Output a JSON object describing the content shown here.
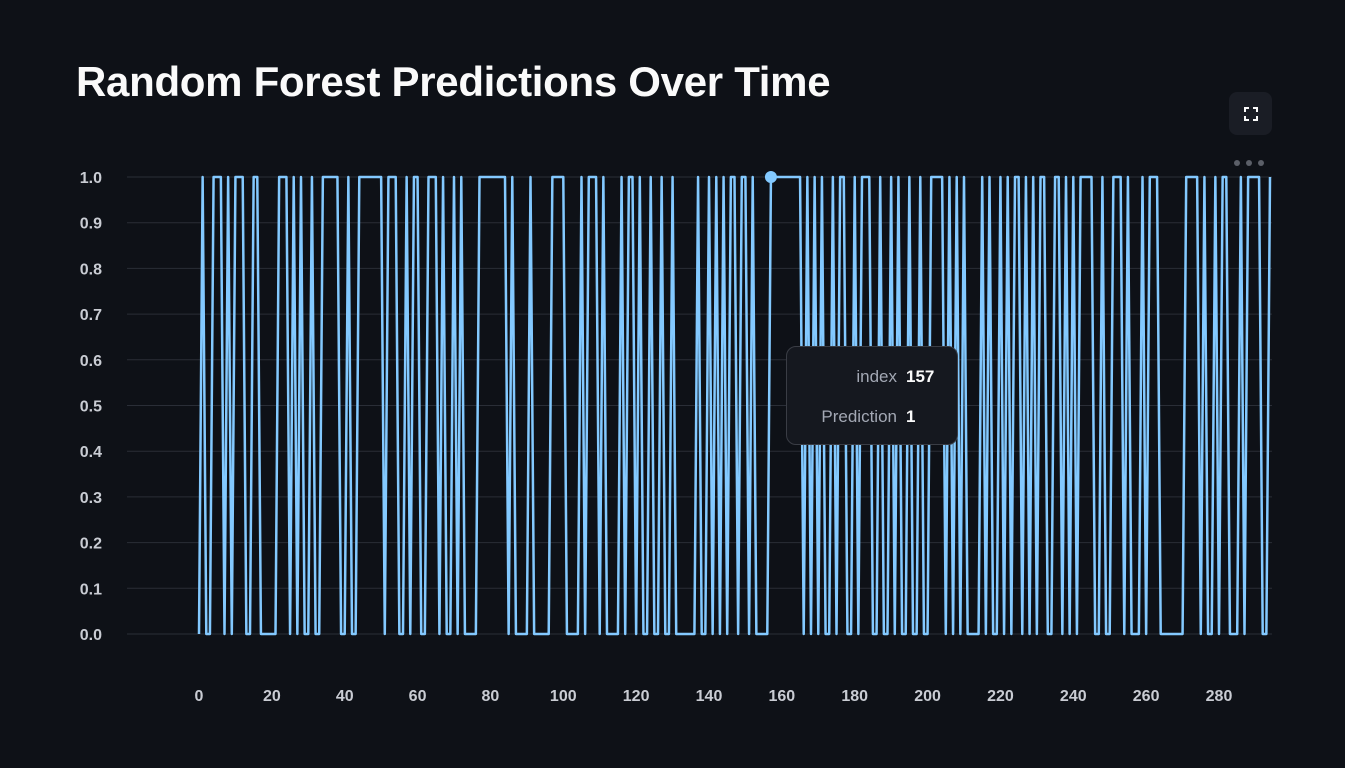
{
  "page": {
    "title": "Random Forest Predictions Over Time"
  },
  "toolbar": {
    "fullscreen_icon": "fullscreen-icon",
    "more_icon": "more-horizontal-icon"
  },
  "tooltip": {
    "rows": [
      {
        "key": "index",
        "value": "157"
      },
      {
        "key": "Prediction",
        "value": "1"
      }
    ]
  },
  "chart_data": {
    "type": "line",
    "title": "Random Forest Predictions Over Time",
    "xlabel": "",
    "ylabel": "",
    "xlim": [
      0,
      293
    ],
    "ylim": [
      0,
      1
    ],
    "x_ticks": [
      0,
      20,
      40,
      60,
      80,
      100,
      120,
      140,
      160,
      180,
      200,
      220,
      240,
      260,
      280
    ],
    "y_ticks": [
      "0.0",
      "0.1",
      "0.2",
      "0.3",
      "0.4",
      "0.5",
      "0.6",
      "0.7",
      "0.8",
      "0.9",
      "1.0"
    ],
    "grid": true,
    "line_color": "#83c9ff",
    "highlight": {
      "x": 157,
      "y": 1
    },
    "series": [
      {
        "values": [
          0,
          1,
          0,
          0,
          1,
          1,
          1,
          0,
          1,
          0,
          1,
          1,
          1,
          0,
          0,
          1,
          1,
          0,
          0,
          0,
          0,
          0,
          1,
          1,
          1,
          0,
          1,
          0,
          1,
          0,
          0,
          1,
          0,
          0,
          1,
          1,
          1,
          1,
          1,
          0,
          0,
          1,
          0,
          0,
          1,
          1,
          1,
          1,
          1,
          1,
          1,
          0,
          1,
          1,
          1,
          0,
          0,
          1,
          0,
          1,
          1,
          0,
          0,
          1,
          1,
          1,
          0,
          1,
          0,
          0,
          1,
          0,
          1,
          0,
          0,
          0,
          0,
          1,
          1,
          1,
          1,
          1,
          1,
          1,
          1,
          0,
          1,
          0,
          0,
          0,
          0,
          1,
          0,
          0,
          0,
          0,
          0,
          1,
          1,
          1,
          1,
          0,
          0,
          0,
          0,
          1,
          0,
          1,
          1,
          1,
          0,
          1,
          0,
          0,
          0,
          0,
          1,
          0,
          1,
          1,
          0,
          1,
          0,
          0,
          1,
          0,
          0,
          1,
          0,
          0,
          1,
          0,
          0,
          0,
          0,
          0,
          0,
          1,
          0,
          0,
          1,
          0,
          1,
          0,
          1,
          0,
          1,
          1,
          0,
          1,
          1,
          0,
          1,
          0,
          0,
          0,
          0,
          1,
          1,
          1,
          1,
          1,
          1,
          1,
          1,
          1,
          0,
          1,
          0,
          1,
          0,
          1,
          0,
          0,
          1,
          0,
          1,
          1,
          0,
          0,
          1,
          0,
          1,
          1,
          1,
          0,
          0,
          1,
          0,
          0,
          1,
          0,
          1,
          0,
          0,
          1,
          0,
          0,
          1,
          0,
          0,
          1,
          1,
          1,
          1,
          0,
          1,
          0,
          1,
          0,
          1,
          0,
          0,
          0,
          0,
          1,
          0,
          1,
          0,
          0,
          1,
          0,
          1,
          0,
          1,
          1,
          0,
          1,
          0,
          1,
          0,
          1,
          1,
          0,
          0,
          1,
          1,
          0,
          1,
          0,
          1,
          0,
          1,
          1,
          1,
          1,
          0,
          0,
          1,
          0,
          0,
          1,
          1,
          1,
          0,
          1,
          0,
          0,
          0,
          1,
          0,
          1,
          1,
          1,
          0,
          0,
          0,
          0,
          0,
          0,
          0,
          1,
          1,
          1,
          1,
          0,
          1,
          0,
          0,
          1,
          0,
          1,
          1,
          0,
          0,
          0,
          1,
          0,
          1,
          1,
          1,
          1,
          0,
          0,
          1
        ]
      }
    ]
  }
}
